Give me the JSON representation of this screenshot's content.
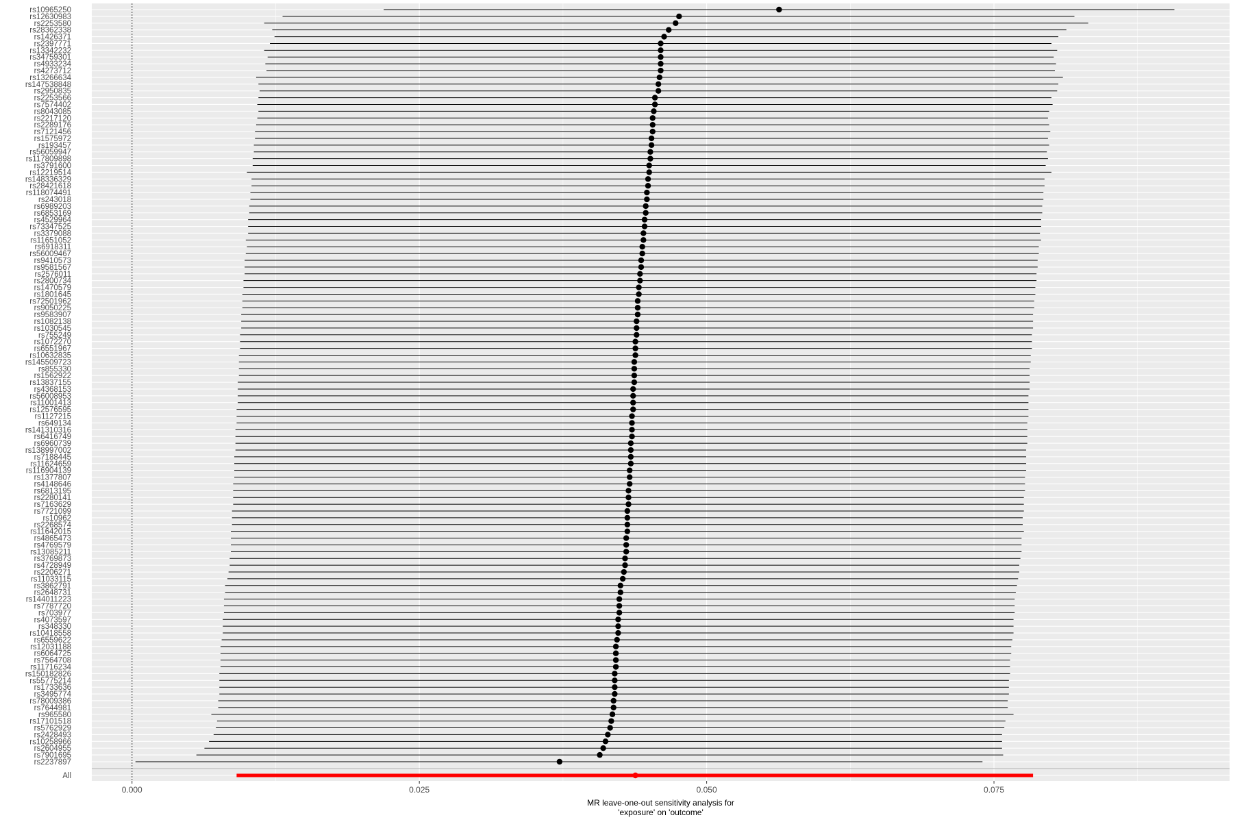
{
  "chart_data": {
    "type": "forest",
    "title": "",
    "xlabel_line1": "MR leave-one-out sensitivity analysis for",
    "xlabel_line2": "'exposure' on 'outcome'",
    "ylabel": "",
    "xlim": [
      -0.0035,
      0.0955
    ],
    "x_ticks": [
      0.0,
      0.025,
      0.05,
      0.075
    ],
    "x_tick_labels": [
      "0.000",
      "0.025",
      "0.050",
      "0.075"
    ],
    "reference_line_x": 0.0,
    "grid": true,
    "colors": {
      "panel_bg": "#ebebeb",
      "grid": "#ffffff",
      "point": "#000000",
      "all_point": "#ff0000",
      "separator": "#bdbdbd"
    },
    "rows": [
      {
        "snp": "rs10965250",
        "b": 0.0563,
        "lo": 0.0219,
        "hi": 0.0907
      },
      {
        "snp": "rs12630983",
        "b": 0.0476,
        "lo": 0.0131,
        "hi": 0.082
      },
      {
        "snp": "rs2253580",
        "b": 0.0473,
        "lo": 0.0115,
        "hi": 0.0832
      },
      {
        "snp": "rs28362338",
        "b": 0.0467,
        "lo": 0.0122,
        "hi": 0.0813
      },
      {
        "snp": "rs1426371",
        "b": 0.0463,
        "lo": 0.0124,
        "hi": 0.0806
      },
      {
        "snp": "rs2397771",
        "b": 0.046,
        "lo": 0.012,
        "hi": 0.08
      },
      {
        "snp": "rs13342232",
        "b": 0.046,
        "lo": 0.0115,
        "hi": 0.0805
      },
      {
        "snp": "rs34759301",
        "b": 0.046,
        "lo": 0.0118,
        "hi": 0.0802
      },
      {
        "snp": "rs4933234",
        "b": 0.046,
        "lo": 0.0116,
        "hi": 0.0804
      },
      {
        "snp": "rs4273712",
        "b": 0.046,
        "lo": 0.0117,
        "hi": 0.0803
      },
      {
        "snp": "rs13266634",
        "b": 0.0459,
        "lo": 0.0108,
        "hi": 0.081
      },
      {
        "snp": "rs147538848",
        "b": 0.0458,
        "lo": 0.011,
        "hi": 0.0806
      },
      {
        "snp": "rs2950835",
        "b": 0.0458,
        "lo": 0.0111,
        "hi": 0.0805
      },
      {
        "snp": "rs2253566",
        "b": 0.0455,
        "lo": 0.011,
        "hi": 0.08
      },
      {
        "snp": "rs7574402",
        "b": 0.0455,
        "lo": 0.0109,
        "hi": 0.0801
      },
      {
        "snp": "rs8043085",
        "b": 0.0454,
        "lo": 0.011,
        "hi": 0.0798
      },
      {
        "snp": "rs2217120",
        "b": 0.0453,
        "lo": 0.0109,
        "hi": 0.0797
      },
      {
        "snp": "rs2289176",
        "b": 0.0453,
        "lo": 0.0108,
        "hi": 0.0798
      },
      {
        "snp": "rs7121456",
        "b": 0.0453,
        "lo": 0.0107,
        "hi": 0.0799
      },
      {
        "snp": "rs1575972",
        "b": 0.0452,
        "lo": 0.0107,
        "hi": 0.0797
      },
      {
        "snp": "rs193457",
        "b": 0.0452,
        "lo": 0.0106,
        "hi": 0.0798
      },
      {
        "snp": "rs56059947",
        "b": 0.0451,
        "lo": 0.0106,
        "hi": 0.0796
      },
      {
        "snp": "rs117809898",
        "b": 0.0451,
        "lo": 0.0105,
        "hi": 0.0797
      },
      {
        "snp": "rs3791600",
        "b": 0.045,
        "lo": 0.0105,
        "hi": 0.0795
      },
      {
        "snp": "rs12219514",
        "b": 0.045,
        "lo": 0.01,
        "hi": 0.08
      },
      {
        "snp": "rs148336329",
        "b": 0.0449,
        "lo": 0.0104,
        "hi": 0.0794
      },
      {
        "snp": "rs28421618",
        "b": 0.0449,
        "lo": 0.0104,
        "hi": 0.0794
      },
      {
        "snp": "rs118074491",
        "b": 0.0448,
        "lo": 0.0103,
        "hi": 0.0793
      },
      {
        "snp": "rs243018",
        "b": 0.0448,
        "lo": 0.0103,
        "hi": 0.0793
      },
      {
        "snp": "rs6989203",
        "b": 0.0447,
        "lo": 0.0102,
        "hi": 0.0792
      },
      {
        "snp": "rs6853169",
        "b": 0.0447,
        "lo": 0.0102,
        "hi": 0.0792
      },
      {
        "snp": "rs4529964",
        "b": 0.0446,
        "lo": 0.0101,
        "hi": 0.0791
      },
      {
        "snp": "rs73347525",
        "b": 0.0446,
        "lo": 0.0101,
        "hi": 0.0791
      },
      {
        "snp": "rs3379088",
        "b": 0.0445,
        "lo": 0.0101,
        "hi": 0.079
      },
      {
        "snp": "rs11651052",
        "b": 0.0445,
        "lo": 0.0099,
        "hi": 0.0791
      },
      {
        "snp": "rs6918311",
        "b": 0.0444,
        "lo": 0.01,
        "hi": 0.0789
      },
      {
        "snp": "rs56009467",
        "b": 0.0444,
        "lo": 0.0099,
        "hi": 0.0789
      },
      {
        "snp": "rs9410573",
        "b": 0.0443,
        "lo": 0.0098,
        "hi": 0.0788
      },
      {
        "snp": "rs9581567",
        "b": 0.0443,
        "lo": 0.0098,
        "hi": 0.0788
      },
      {
        "snp": "rs2576011",
        "b": 0.0442,
        "lo": 0.0098,
        "hi": 0.0787
      },
      {
        "snp": "rs2800734",
        "b": 0.0442,
        "lo": 0.0097,
        "hi": 0.0787
      },
      {
        "snp": "rs1470579",
        "b": 0.0441,
        "lo": 0.0097,
        "hi": 0.0786
      },
      {
        "snp": "rs1801645",
        "b": 0.0441,
        "lo": 0.0096,
        "hi": 0.0786
      },
      {
        "snp": "rs72501962",
        "b": 0.044,
        "lo": 0.0096,
        "hi": 0.0785
      },
      {
        "snp": "rs9050225",
        "b": 0.044,
        "lo": 0.0096,
        "hi": 0.0785
      },
      {
        "snp": "rs9583907",
        "b": 0.044,
        "lo": 0.0095,
        "hi": 0.0784
      },
      {
        "snp": "rs1082138",
        "b": 0.0439,
        "lo": 0.0095,
        "hi": 0.0784
      },
      {
        "snp": "rs1030545",
        "b": 0.0439,
        "lo": 0.0095,
        "hi": 0.0784
      },
      {
        "snp": "rs755249",
        "b": 0.0439,
        "lo": 0.0094,
        "hi": 0.0783
      },
      {
        "snp": "rs1072270",
        "b": 0.0438,
        "lo": 0.0094,
        "hi": 0.0783
      },
      {
        "snp": "rs6551967",
        "b": 0.0438,
        "lo": 0.0094,
        "hi": 0.0783
      },
      {
        "snp": "rs10632835",
        "b": 0.0438,
        "lo": 0.0093,
        "hi": 0.0782
      },
      {
        "snp": "rs145509723",
        "b": 0.0437,
        "lo": 0.0093,
        "hi": 0.0782
      },
      {
        "snp": "rs855330",
        "b": 0.0437,
        "lo": 0.0093,
        "hi": 0.0781
      },
      {
        "snp": "rs1562922",
        "b": 0.0437,
        "lo": 0.0093,
        "hi": 0.0781
      },
      {
        "snp": "rs13837155",
        "b": 0.0437,
        "lo": 0.0092,
        "hi": 0.0781
      },
      {
        "snp": "rs4368153",
        "b": 0.0436,
        "lo": 0.0092,
        "hi": 0.0781
      },
      {
        "snp": "rs56008953",
        "b": 0.0436,
        "lo": 0.0092,
        "hi": 0.078
      },
      {
        "snp": "rs11001413",
        "b": 0.0436,
        "lo": 0.0092,
        "hi": 0.078
      },
      {
        "snp": "rs12576595",
        "b": 0.0436,
        "lo": 0.0091,
        "hi": 0.078
      },
      {
        "snp": "rs1127215",
        "b": 0.0435,
        "lo": 0.0091,
        "hi": 0.078
      },
      {
        "snp": "rs649134",
        "b": 0.0435,
        "lo": 0.0091,
        "hi": 0.0779
      },
      {
        "snp": "rs141310316",
        "b": 0.0435,
        "lo": 0.009,
        "hi": 0.0779
      },
      {
        "snp": "rs6416749",
        "b": 0.0435,
        "lo": 0.009,
        "hi": 0.0779
      },
      {
        "snp": "rs6960739",
        "b": 0.0434,
        "lo": 0.009,
        "hi": 0.0779
      },
      {
        "snp": "rs138997002",
        "b": 0.0434,
        "lo": 0.009,
        "hi": 0.0778
      },
      {
        "snp": "rs7188445",
        "b": 0.0434,
        "lo": 0.0089,
        "hi": 0.0778
      },
      {
        "snp": "rs11624659",
        "b": 0.0434,
        "lo": 0.0089,
        "hi": 0.0778
      },
      {
        "snp": "rs116904139",
        "b": 0.0433,
        "lo": 0.0089,
        "hi": 0.0778
      },
      {
        "snp": "rs1377807",
        "b": 0.0433,
        "lo": 0.0089,
        "hi": 0.0777
      },
      {
        "snp": "rs4148646",
        "b": 0.0433,
        "lo": 0.0088,
        "hi": 0.0777
      },
      {
        "snp": "rs6813195",
        "b": 0.0432,
        "lo": 0.0088,
        "hi": 0.0777
      },
      {
        "snp": "rs2280141",
        "b": 0.0432,
        "lo": 0.0088,
        "hi": 0.0776
      },
      {
        "snp": "rs7163629",
        "b": 0.0432,
        "lo": 0.0088,
        "hi": 0.0776
      },
      {
        "snp": "rs7721099",
        "b": 0.0431,
        "lo": 0.0087,
        "hi": 0.0776
      },
      {
        "snp": "rs10962",
        "b": 0.0431,
        "lo": 0.0087,
        "hi": 0.0775
      },
      {
        "snp": "rs2268574",
        "b": 0.0431,
        "lo": 0.0087,
        "hi": 0.0775
      },
      {
        "snp": "rs11642015",
        "b": 0.0431,
        "lo": 0.0086,
        "hi": 0.0776
      },
      {
        "snp": "rs4865473",
        "b": 0.043,
        "lo": 0.0086,
        "hi": 0.0774
      },
      {
        "snp": "rs4769579",
        "b": 0.043,
        "lo": 0.0086,
        "hi": 0.0774
      },
      {
        "snp": "rs13085211",
        "b": 0.043,
        "lo": 0.0086,
        "hi": 0.0774
      },
      {
        "snp": "rs3769873",
        "b": 0.0429,
        "lo": 0.0085,
        "hi": 0.0773
      },
      {
        "snp": "rs4728949",
        "b": 0.0429,
        "lo": 0.0085,
        "hi": 0.0772
      },
      {
        "snp": "rs2206271",
        "b": 0.0428,
        "lo": 0.0084,
        "hi": 0.0772
      },
      {
        "snp": "rs11033115",
        "b": 0.0427,
        "lo": 0.0083,
        "hi": 0.0771
      },
      {
        "snp": "rs3862791",
        "b": 0.0425,
        "lo": 0.0081,
        "hi": 0.077
      },
      {
        "snp": "rs2648731",
        "b": 0.0425,
        "lo": 0.0081,
        "hi": 0.0769
      },
      {
        "snp": "rs144011223",
        "b": 0.0424,
        "lo": 0.008,
        "hi": 0.0768
      },
      {
        "snp": "rs7787720",
        "b": 0.0424,
        "lo": 0.008,
        "hi": 0.0768
      },
      {
        "snp": "rs703977",
        "b": 0.0424,
        "lo": 0.008,
        "hi": 0.0768
      },
      {
        "snp": "rs4073597",
        "b": 0.0423,
        "lo": 0.0079,
        "hi": 0.0767
      },
      {
        "snp": "rs348330",
        "b": 0.0423,
        "lo": 0.0079,
        "hi": 0.0767
      },
      {
        "snp": "rs10418558",
        "b": 0.0423,
        "lo": 0.0079,
        "hi": 0.0767
      },
      {
        "snp": "rs6559622",
        "b": 0.0422,
        "lo": 0.0078,
        "hi": 0.0766
      },
      {
        "snp": "rs12031188",
        "b": 0.0421,
        "lo": 0.0077,
        "hi": 0.0765
      },
      {
        "snp": "rs6064725",
        "b": 0.0421,
        "lo": 0.0077,
        "hi": 0.0765
      },
      {
        "snp": "rs7564708",
        "b": 0.0421,
        "lo": 0.0077,
        "hi": 0.0764
      },
      {
        "snp": "rs11716234",
        "b": 0.0421,
        "lo": 0.0077,
        "hi": 0.0764
      },
      {
        "snp": "rs150182826",
        "b": 0.042,
        "lo": 0.0076,
        "hi": 0.0764
      },
      {
        "snp": "rs55775214",
        "b": 0.042,
        "lo": 0.0076,
        "hi": 0.0763
      },
      {
        "snp": "rs1733636",
        "b": 0.042,
        "lo": 0.0076,
        "hi": 0.0763
      },
      {
        "snp": "rs3495774",
        "b": 0.042,
        "lo": 0.0076,
        "hi": 0.0763
      },
      {
        "snp": "rs78009386",
        "b": 0.0419,
        "lo": 0.0075,
        "hi": 0.0762
      },
      {
        "snp": "rs7644981",
        "b": 0.0419,
        "lo": 0.0075,
        "hi": 0.0762
      },
      {
        "snp": "rs965580",
        "b": 0.0418,
        "lo": 0.0069,
        "hi": 0.0767
      },
      {
        "snp": "rs17101518",
        "b": 0.0417,
        "lo": 0.0074,
        "hi": 0.076
      },
      {
        "snp": "rs5762929",
        "b": 0.0416,
        "lo": 0.0073,
        "hi": 0.0759
      },
      {
        "snp": "rs2428493",
        "b": 0.0414,
        "lo": 0.0071,
        "hi": 0.0757
      },
      {
        "snp": "rs10258966",
        "b": 0.0412,
        "lo": 0.0067,
        "hi": 0.0757
      },
      {
        "snp": "rs2604955",
        "b": 0.041,
        "lo": 0.0063,
        "hi": 0.0757
      },
      {
        "snp": "rs7901695",
        "b": 0.0407,
        "lo": 0.0056,
        "hi": 0.0758
      },
      {
        "snp": "rs2237897",
        "b": 0.0372,
        "lo": 0.0003,
        "hi": 0.074
      }
    ],
    "all_row": {
      "label": "All",
      "b": 0.0438,
      "lo": 0.0091,
      "hi": 0.0784
    }
  }
}
